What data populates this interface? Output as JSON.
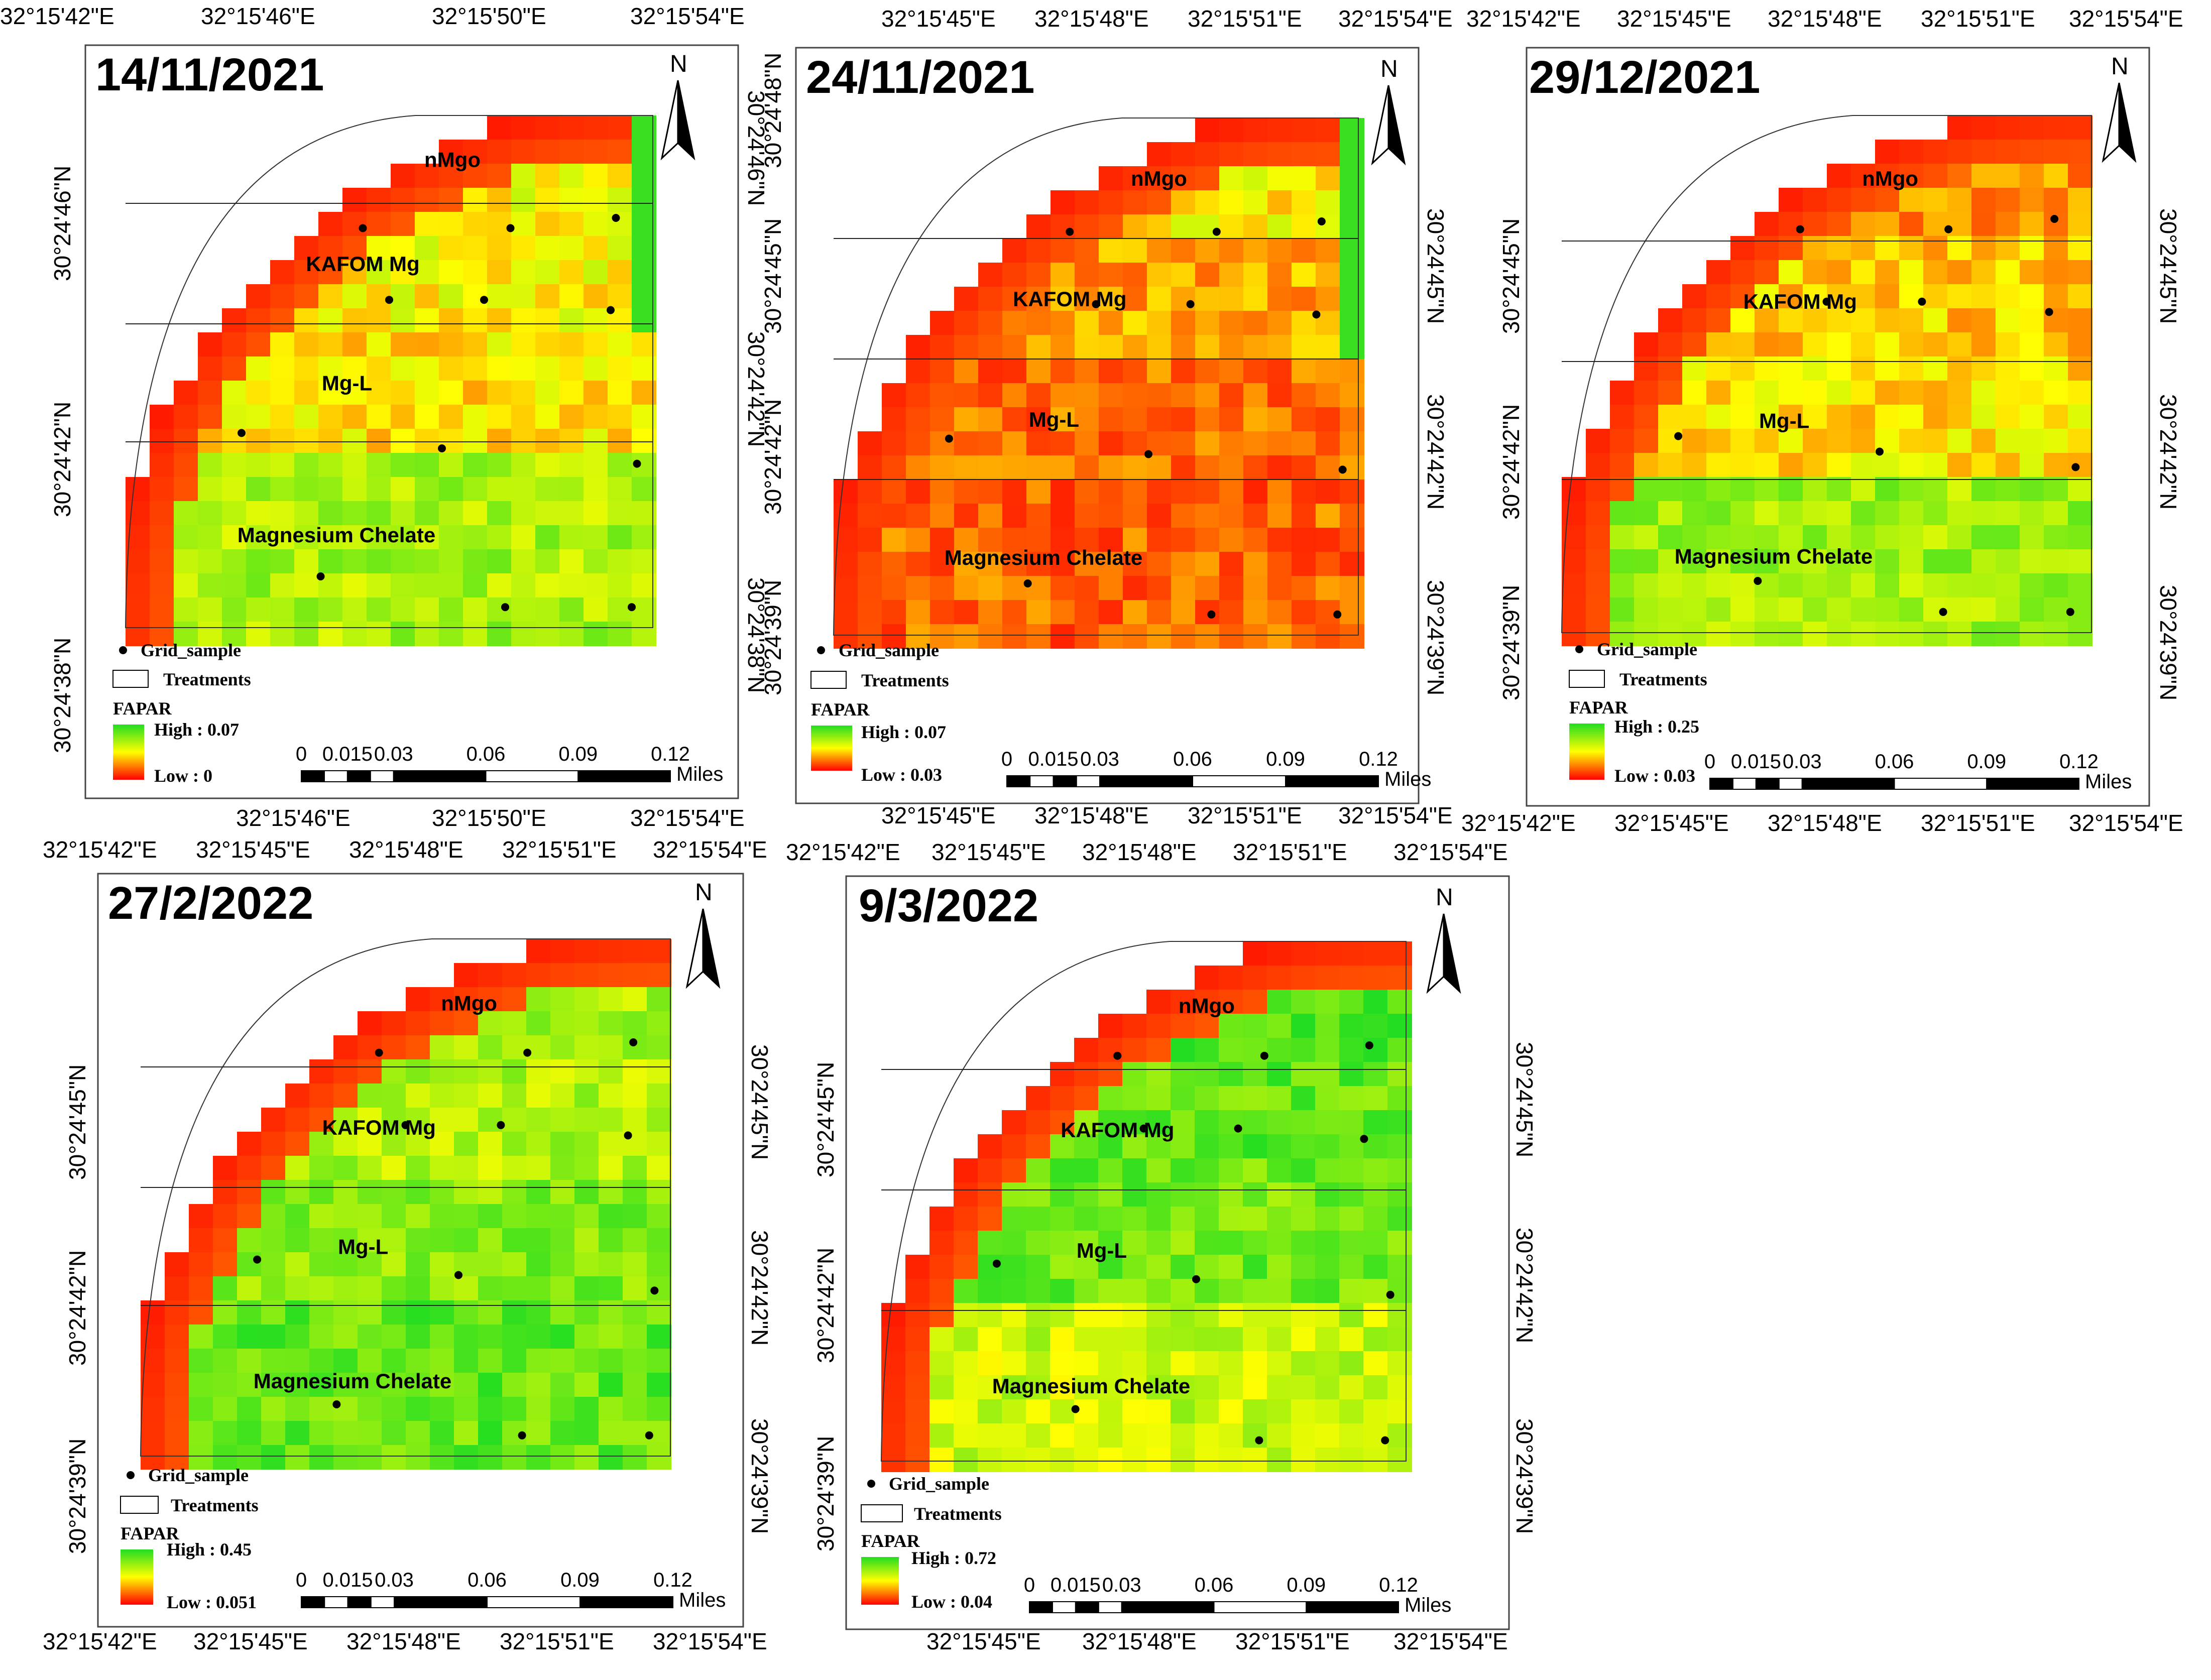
{
  "figure": {
    "legend": {
      "sample_label": "Grid_sample",
      "treatment_label": "Treatments",
      "index_label": "FAPAR"
    },
    "north_label": "N",
    "scalebar": {
      "ticks": [
        "0",
        "0.015",
        "0.03",
        "0.06",
        "0.09",
        "0.12"
      ],
      "unit": "Miles"
    },
    "treatments": [
      "nMgo",
      "KAFOM Mg",
      "Mg-L",
      "Magnesium Chelate"
    ],
    "colors": {
      "high": "#22dd22",
      "mid": "#ffff00",
      "low": "#ff0000"
    }
  },
  "panels": [
    {
      "date": "14/11/2021",
      "high": "High : 0.07",
      "low": "Low : 0",
      "top_lon": [
        "32°15'42\"E",
        "32°15'46\"E",
        "32°15'50\"E",
        "32°15'54\"E"
      ],
      "bottom_lon": [
        "32°15'46\"E",
        "32°15'50\"E",
        "32°15'54\"E"
      ],
      "left_lat": [
        "30°24'46\"N",
        "30°24'42\"N",
        "30°24'38\"N"
      ],
      "right_lat": [
        "30°24'46\"N",
        "30°24'42\"N",
        "30°24'38\"N"
      ],
      "zone_mean": [
        0.5,
        0.5,
        0.45,
        0.7
      ],
      "green_col": true
    },
    {
      "date": "24/11/2021",
      "high": "High : 0.07",
      "low": "Low : 0.03",
      "top_lon": [
        "32°15'45\"E",
        "32°15'48\"E",
        "32°15'51\"E",
        "32°15'54\"E"
      ],
      "bottom_lon": [
        "32°15'45\"E",
        "32°15'48\"E",
        "32°15'51\"E",
        "32°15'54\"E"
      ],
      "left_lat": [
        "30°24'48\"N",
        "30°24'45\"N",
        "30°24'42\"N",
        "30°24'39\"N"
      ],
      "right_lat": [
        "30°24'45\"N",
        "30°24'42\"N",
        "30°24'39\"N"
      ],
      "zone_mean": [
        0.48,
        0.32,
        0.22,
        0.2
      ],
      "green_col": true
    },
    {
      "date": "29/12/2021",
      "high": "High : 0.25",
      "low": "Low : 0.03",
      "top_lon": [
        "32°15'42\"E",
        "32°15'45\"E",
        "32°15'48\"E",
        "32°15'51\"E",
        "32°15'54\"E"
      ],
      "bottom_lon": [
        "32°15'42\"E",
        "32°15'45\"E",
        "32°15'48\"E",
        "32°15'51\"E",
        "32°15'54\"E"
      ],
      "left_lat": [
        "30°24'45\"N",
        "30°24'42\"N",
        "30°24'39\"N"
      ],
      "right_lat": [
        "30°24'45\"N",
        "30°24'42\"N",
        "30°24'39\"N"
      ],
      "zone_mean": [
        0.3,
        0.4,
        0.45,
        0.72
      ],
      "green_col": false
    },
    {
      "date": "27/2/2022",
      "high": "High : 0.45",
      "low": "Low : 0.051",
      "top_lon": [
        "32°15'42\"E",
        "32°15'45\"E",
        "32°15'48\"E",
        "32°15'51\"E",
        "32°15'54\"E"
      ],
      "bottom_lon": [
        "32°15'42\"E",
        "32°15'45\"E",
        "32°15'48\"E",
        "32°15'51\"E",
        "32°15'54\"E"
      ],
      "left_lat": [
        "30°24'45\"N",
        "30°24'42\"N",
        "30°24'39\"N"
      ],
      "right_lat": [
        "30°24'45\"N",
        "30°24'42\"N",
        "30°24'39\"N"
      ],
      "zone_mean": [
        0.68,
        0.68,
        0.78,
        0.85
      ],
      "green_col": false
    },
    {
      "date": "9/3/2022",
      "high": "High : 0.72",
      "low": "Low : 0.04",
      "top_lon": [
        "32°15'42\"E",
        "32°15'45\"E",
        "32°15'48\"E",
        "32°15'51\"E",
        "32°15'54\"E"
      ],
      "bottom_lon": [
        "32°15'45\"E",
        "32°15'48\"E",
        "32°15'51\"E",
        "32°15'54\"E"
      ],
      "left_lat": [
        "30°24'45\"N",
        "30°24'42\"N",
        "30°24'39\"N"
      ],
      "right_lat": [
        "30°24'45\"N",
        "30°24'42\"N",
        "30°24'39\"N"
      ],
      "zone_mean": [
        0.9,
        0.85,
        0.82,
        0.62
      ],
      "green_col": false
    }
  ]
}
